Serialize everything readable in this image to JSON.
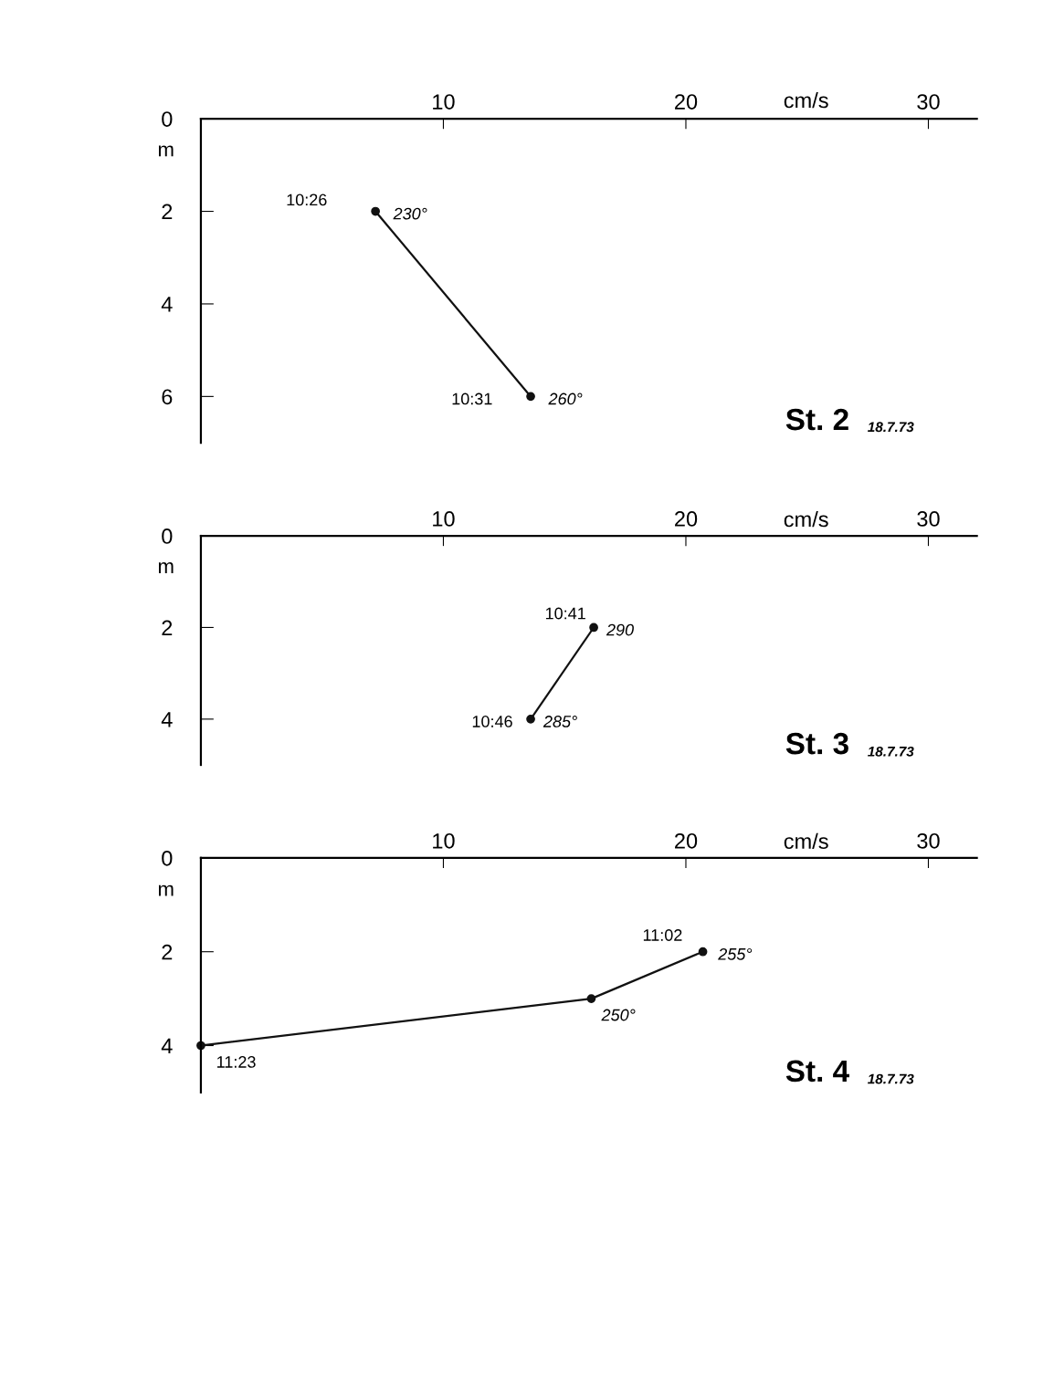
{
  "chart_data": [
    {
      "type": "line",
      "title": "St. 2",
      "subtitle": "18.7.73",
      "xlabel": "cm/s",
      "ylabel": "m",
      "x": [
        7.2,
        13.6
      ],
      "values": [
        2,
        6
      ],
      "color": "#111111",
      "marker": "circle",
      "line_style": "solid",
      "xlim": [
        0,
        32
      ],
      "xticks": [
        10,
        20,
        30
      ],
      "ylim": [
        7,
        0
      ],
      "yticks": [
        0,
        2,
        4,
        6
      ],
      "grid": false,
      "legend": false,
      "annotations": [
        {
          "text": "10:26",
          "x": 7.2,
          "y": 2
        },
        {
          "text": "230°",
          "x": 7.2,
          "y": 2
        },
        {
          "text": "10:31",
          "x": 13.6,
          "y": 6
        },
        {
          "text": "260°",
          "x": 13.6,
          "y": 6
        }
      ]
    },
    {
      "type": "line",
      "title": "St. 3",
      "subtitle": "18.7.73",
      "xlabel": "cm/s",
      "ylabel": "m",
      "x": [
        16.2,
        13.6
      ],
      "values": [
        2,
        4
      ],
      "color": "#111111",
      "marker": "circle",
      "line_style": "solid",
      "xlim": [
        0,
        32
      ],
      "xticks": [
        10,
        20,
        30
      ],
      "ylim": [
        5,
        0
      ],
      "yticks": [
        0,
        2,
        4
      ],
      "grid": false,
      "legend": false,
      "annotations": [
        {
          "text": "10:41",
          "x": 16.2,
          "y": 2
        },
        {
          "text": "290",
          "x": 16.2,
          "y": 2
        },
        {
          "text": "10:46",
          "x": 13.6,
          "y": 4
        },
        {
          "text": "285°",
          "x": 13.6,
          "y": 4
        }
      ]
    },
    {
      "type": "line",
      "title": "St. 4",
      "subtitle": "18.7.73",
      "xlabel": "cm/s",
      "ylabel": "m",
      "x": [
        20.7,
        16.1,
        0
      ],
      "values": [
        2,
        3,
        4
      ],
      "color": "#111111",
      "marker": "circle",
      "line_style": "solid",
      "xlim": [
        0,
        32
      ],
      "xticks": [
        10,
        20,
        30
      ],
      "ylim": [
        5,
        0
      ],
      "yticks": [
        0,
        2,
        4
      ],
      "grid": false,
      "legend": false,
      "annotations": [
        {
          "text": "11:02",
          "x": 20.7,
          "y": 2
        },
        {
          "text": "255°",
          "x": 20.7,
          "y": 2
        },
        {
          "text": "250°",
          "x": 16.1,
          "y": 3
        },
        {
          "text": "11:23",
          "x": 0,
          "y": 4
        }
      ]
    }
  ]
}
